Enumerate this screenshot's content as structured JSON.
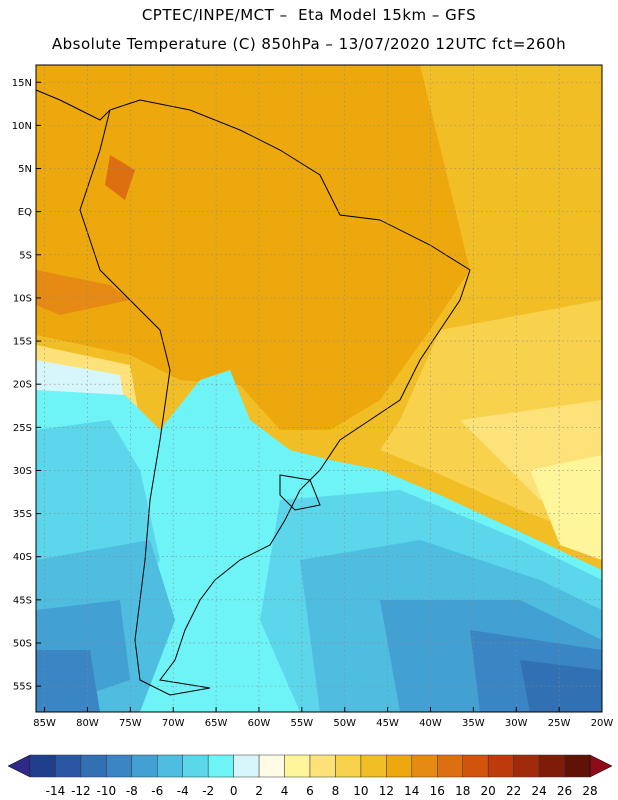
{
  "title": {
    "line1": "CPTEC/INPE/MCT –  Eta Model 15km – GFS",
    "line2": "Absolute Temperature (C) 850hPa – 13/07/2020 12UTC fct=260h"
  },
  "map": {
    "lat_labels": [
      "15N",
      "10N",
      "5N",
      "EQ",
      "5S",
      "10S",
      "15S",
      "20S",
      "25S",
      "30S",
      "35S",
      "40S",
      "45S",
      "50S",
      "55S"
    ],
    "lon_labels": [
      "85W",
      "80W",
      "75W",
      "70W",
      "65W",
      "60W",
      "55W",
      "50W",
      "45W",
      "40W",
      "35W",
      "30W",
      "25W",
      "20W"
    ],
    "lat_range": [
      17,
      -58
    ],
    "lon_range": [
      -86,
      -20
    ]
  },
  "colorbar": {
    "labels": [
      "-14",
      "-12",
      "-10",
      "-8",
      "-6",
      "-4",
      "-2",
      "0",
      "2",
      "4",
      "6",
      "8",
      "10",
      "12",
      "14",
      "16",
      "18",
      "20",
      "22",
      "24",
      "26",
      "28"
    ],
    "colors": [
      "#1f3f8c",
      "#2a56a3",
      "#3270b4",
      "#3a86c4",
      "#42a0d2",
      "#4fbde0",
      "#5bd6ea",
      "#6ef3f6",
      "#d6f6fb",
      "#fffbe4",
      "#fff59b",
      "#fde27a",
      "#f8d24d",
      "#f2be25",
      "#eda80e",
      "#e68a14",
      "#de6f10",
      "#d0540c",
      "#bc3a0b",
      "#a02b0a",
      "#7e1c07",
      "#611207",
      "#8c0a1a"
    ],
    "under_color": "#2d2a8a",
    "over_color": "#8c0a1a"
  }
}
